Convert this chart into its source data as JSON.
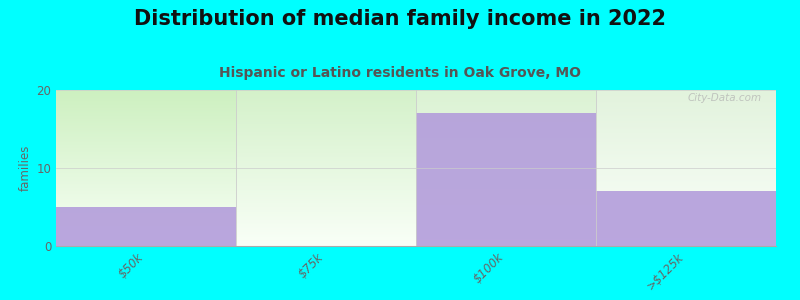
{
  "title": "Distribution of median family income in 2022",
  "subtitle": "Hispanic or Latino residents in Oak Grove, MO",
  "categories": [
    "$50k",
    "$75k",
    "$100k",
    ">$125k"
  ],
  "values": [
    5,
    0,
    17,
    7
  ],
  "bar_color": "#b39ddb",
  "bar_alpha": 0.9,
  "bg_fill_top_color": "#c8f0c0",
  "bg_fill_bottom_color": "#f5fff5",
  "background_color": "#00ffff",
  "ylabel": "families",
  "ylim": [
    0,
    20
  ],
  "yticks": [
    0,
    10,
    20
  ],
  "title_fontsize": 15,
  "subtitle_fontsize": 10,
  "subtitle_color": "#555555",
  "watermark": "City-Data.com",
  "x_tick_rotation": 45,
  "tick_color": "#666666"
}
